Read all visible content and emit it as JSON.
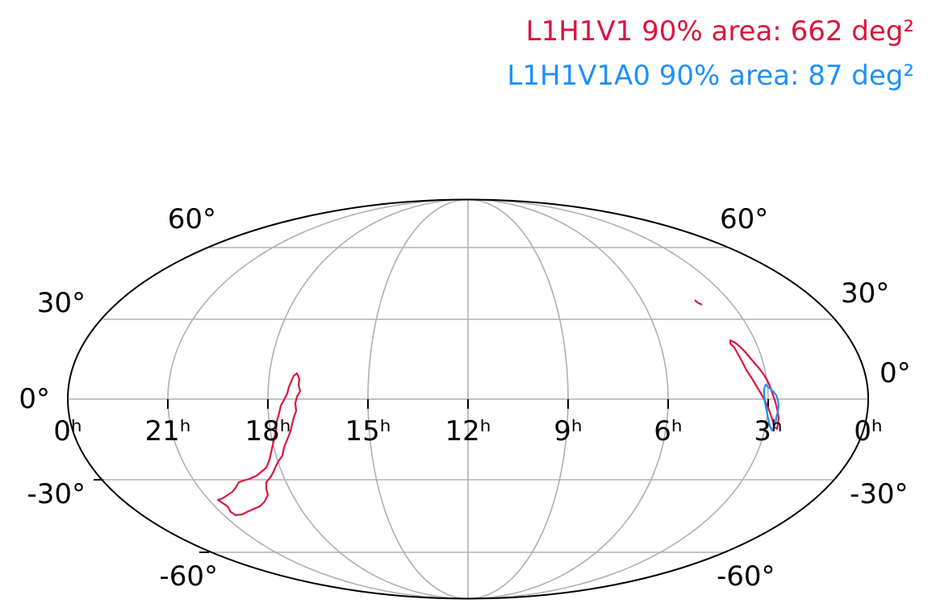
{
  "legend": [
    {
      "text": "L1H1V1 90% area: 662 deg²",
      "color": "#dc143c"
    },
    {
      "text": "L1H1V1A0 90% area: 87 deg²",
      "color": "#1e90ff"
    }
  ],
  "map": {
    "projection": "mollweide",
    "grid": true,
    "grid_color": "#b0b0b0",
    "outline_color": "#000000",
    "ra_labels": [
      "0ʰ",
      "21ʰ",
      "18ʰ",
      "15ʰ",
      "12ʰ",
      "9ʰ",
      "6ʰ",
      "3ʰ",
      "0ʰ"
    ],
    "dec_labels_left": [
      "60°",
      "30°",
      "0°",
      "-30°",
      "-60°"
    ],
    "dec_labels_right": [
      "60°",
      "30°",
      "0°",
      "-30°",
      "-60°"
    ]
  }
}
